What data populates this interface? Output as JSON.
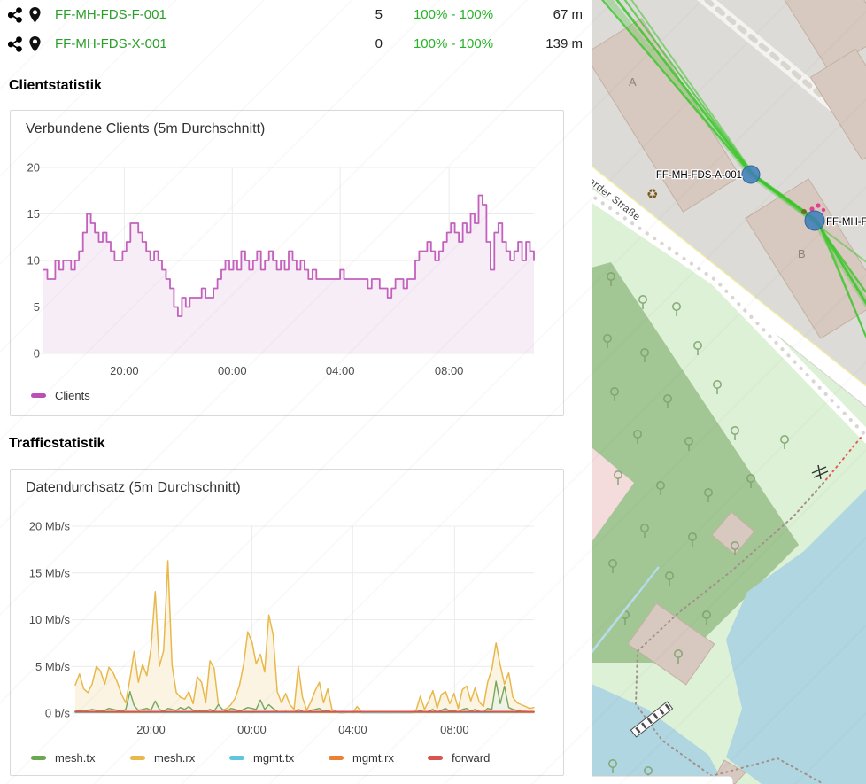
{
  "links_table": {
    "rows": [
      {
        "node": "FF-MH-FDS-F-001",
        "clients": "5",
        "quality": "100% - 100%",
        "distance": "67 m"
      },
      {
        "node": "FF-MH-FDS-X-001",
        "clients": "0",
        "quality": "100% - 100%",
        "distance": "139 m"
      }
    ]
  },
  "sections": {
    "clients_heading": "Clientstatistik",
    "traffic_heading": "Trafficstatistik"
  },
  "colors": {
    "link_green": "#2b9e2b",
    "quality_green": "#27b327",
    "clients_line": "#c361bd",
    "clients_fill": "#f7edf6",
    "mesh_tx": "#6aa84f",
    "mesh_rx": "#e9b84a",
    "mgmt_tx": "#5fc6dd",
    "mgmt_rx": "#ec8033",
    "forward": "#d9534f",
    "mesh_link_green": "#3cc42a",
    "marker_blue": "#3d7cb8"
  },
  "chart_data": [
    {
      "type": "area",
      "step": true,
      "title": "Verbundene Clients (5m Durchschnitt)",
      "ylim": [
        0,
        20
      ],
      "yticks": [
        {
          "v": 0,
          "label": "0"
        },
        {
          "v": 5,
          "label": "5"
        },
        {
          "v": 10,
          "label": "10"
        },
        {
          "v": 15,
          "label": "15"
        },
        {
          "v": 20,
          "label": "20"
        }
      ],
      "xticks": [
        {
          "f": 0.165,
          "label": "20:00"
        },
        {
          "f": 0.385,
          "label": "00:00"
        },
        {
          "f": 0.605,
          "label": "04:00"
        },
        {
          "f": 0.827,
          "label": "08:00"
        }
      ],
      "series": [
        {
          "name": "Clients",
          "color": "#c361bd",
          "fill": "#f7edf6",
          "width": 1.8,
          "values": [
            9,
            8,
            8,
            10,
            9,
            10,
            10,
            9,
            10,
            11,
            13,
            15,
            14,
            13,
            12,
            13,
            12,
            11,
            10,
            10,
            11,
            12,
            14,
            14,
            13,
            12,
            11,
            10,
            11,
            10,
            9,
            8,
            7,
            5,
            4,
            6,
            5,
            6,
            6,
            6,
            7,
            6,
            6,
            7,
            8,
            9,
            10,
            9,
            10,
            9,
            11,
            10,
            9,
            10,
            11,
            9,
            10,
            11,
            10,
            9,
            10,
            9,
            11,
            10,
            9,
            10,
            9,
            8,
            9,
            8,
            8,
            8,
            8,
            8,
            8,
            9,
            8,
            8,
            8,
            8,
            8,
            8,
            7,
            8,
            8,
            7,
            7,
            6,
            7,
            8,
            8,
            7,
            8,
            8,
            10,
            11,
            11,
            12,
            11,
            10,
            11,
            12,
            13,
            14,
            13,
            12,
            14,
            13,
            15,
            14,
            17,
            16,
            12,
            9,
            13,
            14,
            12,
            11,
            10,
            11,
            12,
            10,
            12,
            11,
            10
          ]
        }
      ],
      "legend": [
        {
          "label": "Clients",
          "color": "#bb4fb6"
        }
      ]
    },
    {
      "type": "area",
      "step": false,
      "title": "Datendurchsatz (5m Durchschnitt)",
      "ylim": [
        0,
        20
      ],
      "yticks": [
        {
          "v": 0,
          "label": "0 b/s"
        },
        {
          "v": 5,
          "label": "5 Mb/s"
        },
        {
          "v": 10,
          "label": "10 Mb/s"
        },
        {
          "v": 15,
          "label": "15 Mb/s"
        },
        {
          "v": 20,
          "label": "20 Mb/s"
        }
      ],
      "xticks": [
        {
          "f": 0.165,
          "label": "20:00"
        },
        {
          "f": 0.385,
          "label": "00:00"
        },
        {
          "f": 0.605,
          "label": "04:00"
        },
        {
          "f": 0.827,
          "label": "08:00"
        }
      ],
      "series": [
        {
          "name": "mesh.rx",
          "color": "#e9b84a",
          "fill": "#fcf4e2",
          "width": 1.5,
          "values": [
            3.0,
            4.2,
            2.6,
            2.2,
            3.1,
            5.0,
            4.5,
            3.1,
            4.9,
            4.3,
            3.3,
            2.0,
            1.1,
            3.7,
            6.6,
            3.3,
            5.2,
            4.0,
            6.9,
            13.0,
            5.0,
            6.7,
            16.3,
            5.1,
            2.2,
            1.7,
            1.5,
            2.3,
            1.0,
            3.9,
            3.3,
            1.1,
            5.6,
            4.8,
            0.9,
            0.3,
            0.5,
            0.9,
            1.6,
            2.9,
            5.2,
            8.7,
            7.6,
            5.3,
            6.3,
            4.4,
            10.5,
            8.4,
            2.3,
            1.1,
            2.1,
            0.9,
            0.4,
            5.0,
            1.7,
            0.3,
            1.2,
            2.4,
            3.3,
            1.1,
            2.6,
            0.4,
            0.2,
            0.1,
            0.1,
            0.15,
            0.1,
            0.7,
            0.1,
            0.08,
            0.1,
            0.06,
            0.1,
            0.08,
            0.06,
            0.1,
            0.08,
            0.1,
            0.06,
            0.1,
            0.1,
            0.3,
            1.8,
            0.4,
            1.3,
            2.4,
            0.5,
            2.0,
            2.3,
            1.0,
            2.1,
            0.5,
            2.5,
            2.9,
            1.3,
            2.7,
            1.2,
            0.7,
            3.3,
            4.7,
            7.5,
            5.1,
            3.1,
            4.3,
            1.7,
            1.1,
            0.9,
            0.7,
            0.5,
            0.6
          ]
        },
        {
          "name": "mesh.tx",
          "color": "#7aa65a",
          "fill": "#edf3e6",
          "width": 1.4,
          "values": [
            0.2,
            0.3,
            0.2,
            0.3,
            0.4,
            0.3,
            0.2,
            0.3,
            0.5,
            0.4,
            0.3,
            0.2,
            0.4,
            2.3,
            0.8,
            0.3,
            0.4,
            0.5,
            0.3,
            1.3,
            0.4,
            0.2,
            0.5,
            0.4,
            0.3,
            0.6,
            0.4,
            0.7,
            0.3,
            0.2,
            0.3,
            0.2,
            0.4,
            0.2,
            0.9,
            0.4,
            0.2,
            0.5,
            0.4,
            0.2,
            0.4,
            0.6,
            0.5,
            0.4,
            1.4,
            0.4,
            0.9,
            0.5,
            0.2,
            0.1,
            0.2,
            0.1,
            0.1,
            0.4,
            0.2,
            0.1,
            0.3,
            0.4,
            0.5,
            0.2,
            0.3,
            0.1,
            0.1,
            0.05,
            0.05,
            0.1,
            0.05,
            0.2,
            0.05,
            0.05,
            0.05,
            0.05,
            0.05,
            0.05,
            0.05,
            0.05,
            0.05,
            0.05,
            0.05,
            0.05,
            0.05,
            0.1,
            0.3,
            0.1,
            0.2,
            0.4,
            0.1,
            0.3,
            0.5,
            0.2,
            0.3,
            0.1,
            0.4,
            0.5,
            0.2,
            0.4,
            0.2,
            0.1,
            0.5,
            0.4,
            3.4,
            1.0,
            2.9,
            0.6,
            0.4,
            0.3,
            0.2,
            0.2,
            0.15,
            0.1
          ]
        },
        {
          "name": "mgmt.tx",
          "color": "#5fc6dd",
          "width": 1.3,
          "values": [
            0.05,
            0.05,
            0.05,
            0.05,
            0.05,
            0.05,
            0.05,
            0.05,
            0.05,
            0.05
          ]
        },
        {
          "name": "mgmt.rx",
          "color": "#ec8033",
          "width": 1.3,
          "values": [
            0.1,
            0.08,
            0.1,
            0.09,
            0.1,
            0.08,
            0.1,
            0.09,
            0.1,
            0.08
          ]
        },
        {
          "name": "forward",
          "color": "#d9534f",
          "width": 1.8,
          "values": [
            0.15,
            0.15,
            0.15,
            0.15,
            0.15,
            0.15,
            0.15,
            0.15,
            0.15,
            0.15
          ]
        }
      ],
      "legend": [
        {
          "label": "mesh.tx",
          "color": "#6aa84f"
        },
        {
          "label": "mesh.rx",
          "color": "#e9b84a"
        },
        {
          "label": "mgmt.tx",
          "color": "#5fc6dd"
        },
        {
          "label": "mgmt.rx",
          "color": "#ec8033"
        },
        {
          "label": "forward",
          "color": "#d9534f"
        }
      ]
    }
  ],
  "map": {
    "labels": {
      "node_a": "FF-MH-FDS-A-001",
      "node_b": "FF-MH-FD",
      "building_a": "A",
      "building_b": "B",
      "street": "arder Straße"
    },
    "recycling_symbol": "♻"
  }
}
